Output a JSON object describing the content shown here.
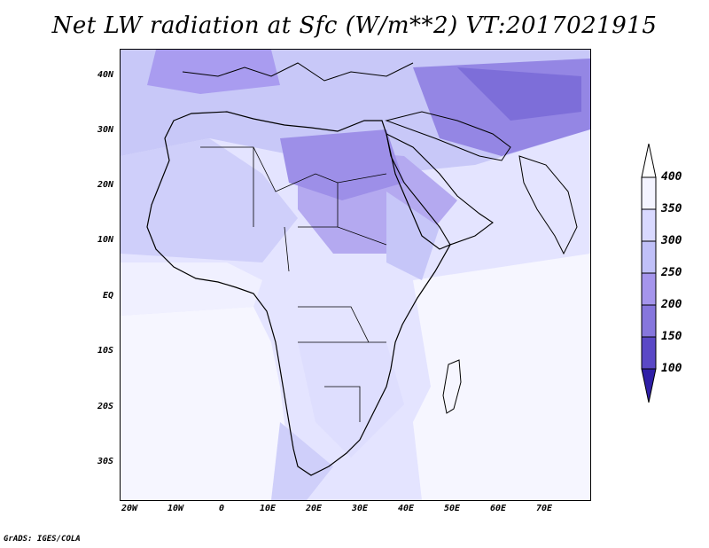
{
  "title": "Net LW radiation at Sfc (W/m**2) VT:2017021915",
  "footer": "GrADS: IGES/COLA",
  "lat_labels": [
    "40N",
    "30N",
    "20N",
    "10N",
    "EQ",
    "10S",
    "20S",
    "30S"
  ],
  "lon_labels": [
    "20W",
    "10W",
    "0",
    "10E",
    "20E",
    "30E",
    "40E",
    "50E",
    "60E",
    "70E"
  ],
  "colorbar": {
    "labels": [
      "400",
      "350",
      "300",
      "250",
      "200",
      "150",
      "100"
    ],
    "colors": [
      "#f4f4ff",
      "#d9d9ff",
      "#c0c0f8",
      "#a595ec",
      "#8676dd",
      "#5a48c6",
      "#2f1fa7"
    ]
  },
  "map_extent": {
    "lon": [
      -22,
      80
    ],
    "lat": [
      -37,
      45
    ]
  }
}
